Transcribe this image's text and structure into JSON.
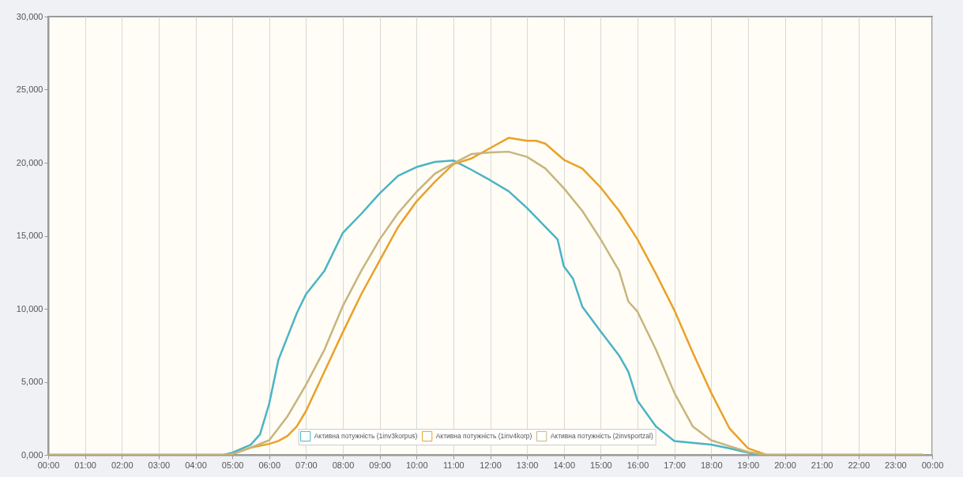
{
  "chart_data": {
    "type": "line",
    "xlim": [
      0,
      24
    ],
    "xticks": [
      {
        "value": 0,
        "label": "00:00"
      },
      {
        "value": 1,
        "label": "01:00"
      },
      {
        "value": 2,
        "label": "02:00"
      },
      {
        "value": 3,
        "label": "03:00"
      },
      {
        "value": 4,
        "label": "04:00"
      },
      {
        "value": 5,
        "label": "05:00"
      },
      {
        "value": 6,
        "label": "06:00"
      },
      {
        "value": 7,
        "label": "07:00"
      },
      {
        "value": 8,
        "label": "08:00"
      },
      {
        "value": 9,
        "label": "09:00"
      },
      {
        "value": 10,
        "label": "10:00"
      },
      {
        "value": 11,
        "label": "11:00"
      },
      {
        "value": 12,
        "label": "12:00"
      },
      {
        "value": 13,
        "label": "13:00"
      },
      {
        "value": 14,
        "label": "14:00"
      },
      {
        "value": 15,
        "label": "15:00"
      },
      {
        "value": 16,
        "label": "16:00"
      },
      {
        "value": 17,
        "label": "17:00"
      },
      {
        "value": 18,
        "label": "18:00"
      },
      {
        "value": 19,
        "label": "19:00"
      },
      {
        "value": 20,
        "label": "20:00"
      },
      {
        "value": 21,
        "label": "21:00"
      },
      {
        "value": 22,
        "label": "22:00"
      },
      {
        "value": 23,
        "label": "23:00"
      },
      {
        "value": 24,
        "label": "00:00"
      }
    ],
    "ylim": [
      0,
      30000
    ],
    "yticks": [
      {
        "value": 0,
        "label": "0,000"
      },
      {
        "value": 5000,
        "label": "5,000"
      },
      {
        "value": 10000,
        "label": "10,000"
      },
      {
        "value": 15000,
        "label": "15,000"
      },
      {
        "value": 20000,
        "label": "20,000"
      },
      {
        "value": 25000,
        "label": "25,000"
      },
      {
        "value": 30000,
        "label": "30,000"
      }
    ],
    "grid": "x",
    "legend": "bottom",
    "series": [
      {
        "name": "Активна потужність (1inv3korpus)",
        "color": "#4bb3c6",
        "x": [
          0,
          4.75,
          5,
          5.5,
          5.75,
          6,
          6.25,
          6.5,
          6.75,
          7,
          7.5,
          8,
          8.5,
          9,
          9.5,
          10,
          10.5,
          11,
          11.5,
          12,
          12.5,
          13,
          13.5,
          13.83,
          14,
          14.25,
          14.5,
          15,
          15.5,
          15.75,
          16,
          16.5,
          17,
          18,
          18.5,
          19,
          19.25,
          23.75
        ],
        "values": [
          0,
          0,
          150,
          700,
          1400,
          3500,
          6500,
          8100,
          9700,
          11000,
          12600,
          15200,
          16500,
          17900,
          19100,
          19700,
          20050,
          20150,
          19500,
          18800,
          18050,
          16900,
          15600,
          14750,
          12900,
          12050,
          10150,
          8450,
          6800,
          5700,
          3700,
          1950,
          950,
          700,
          450,
          150,
          0,
          0
        ]
      },
      {
        "name": "Активна потужність (1inv4korp)",
        "color": "#e9a12a",
        "x": [
          0,
          4.75,
          5,
          5.5,
          6,
          6.25,
          6.5,
          6.75,
          7,
          7.5,
          8,
          8.5,
          9,
          9.5,
          10,
          10.5,
          11,
          11.5,
          12,
          12.5,
          13,
          13.25,
          13.5,
          14,
          14.5,
          15,
          15.5,
          16,
          16.5,
          17,
          17.5,
          18,
          18.5,
          19,
          19.5,
          23.75
        ],
        "values": [
          0,
          0,
          50,
          500,
          750,
          950,
          1300,
          1950,
          3000,
          5700,
          8400,
          11000,
          13300,
          15600,
          17350,
          18700,
          19900,
          20300,
          21000,
          21700,
          21500,
          21500,
          21300,
          20200,
          19600,
          18300,
          16700,
          14750,
          12400,
          9900,
          7000,
          4250,
          1800,
          450,
          0,
          0
        ]
      },
      {
        "name": "Активна потужність (2invsportzal)",
        "color": "#c8b47e",
        "x": [
          0,
          4.75,
          5,
          5.5,
          6,
          6.5,
          7,
          7.5,
          8,
          8.5,
          9,
          9.5,
          10,
          10.5,
          11,
          11.5,
          12,
          12.5,
          13,
          13.5,
          14,
          14.5,
          15,
          15.5,
          15.75,
          16,
          16.5,
          17,
          17.5,
          18,
          18.5,
          19,
          19.5,
          23.75
        ],
        "values": [
          0,
          0,
          50,
          500,
          1000,
          2650,
          4800,
          7200,
          10200,
          12600,
          14750,
          16550,
          18000,
          19250,
          19950,
          20600,
          20700,
          20750,
          20400,
          19600,
          18250,
          16700,
          14750,
          12600,
          10500,
          9800,
          7200,
          4250,
          1950,
          1000,
          600,
          200,
          0,
          0
        ]
      }
    ]
  }
}
